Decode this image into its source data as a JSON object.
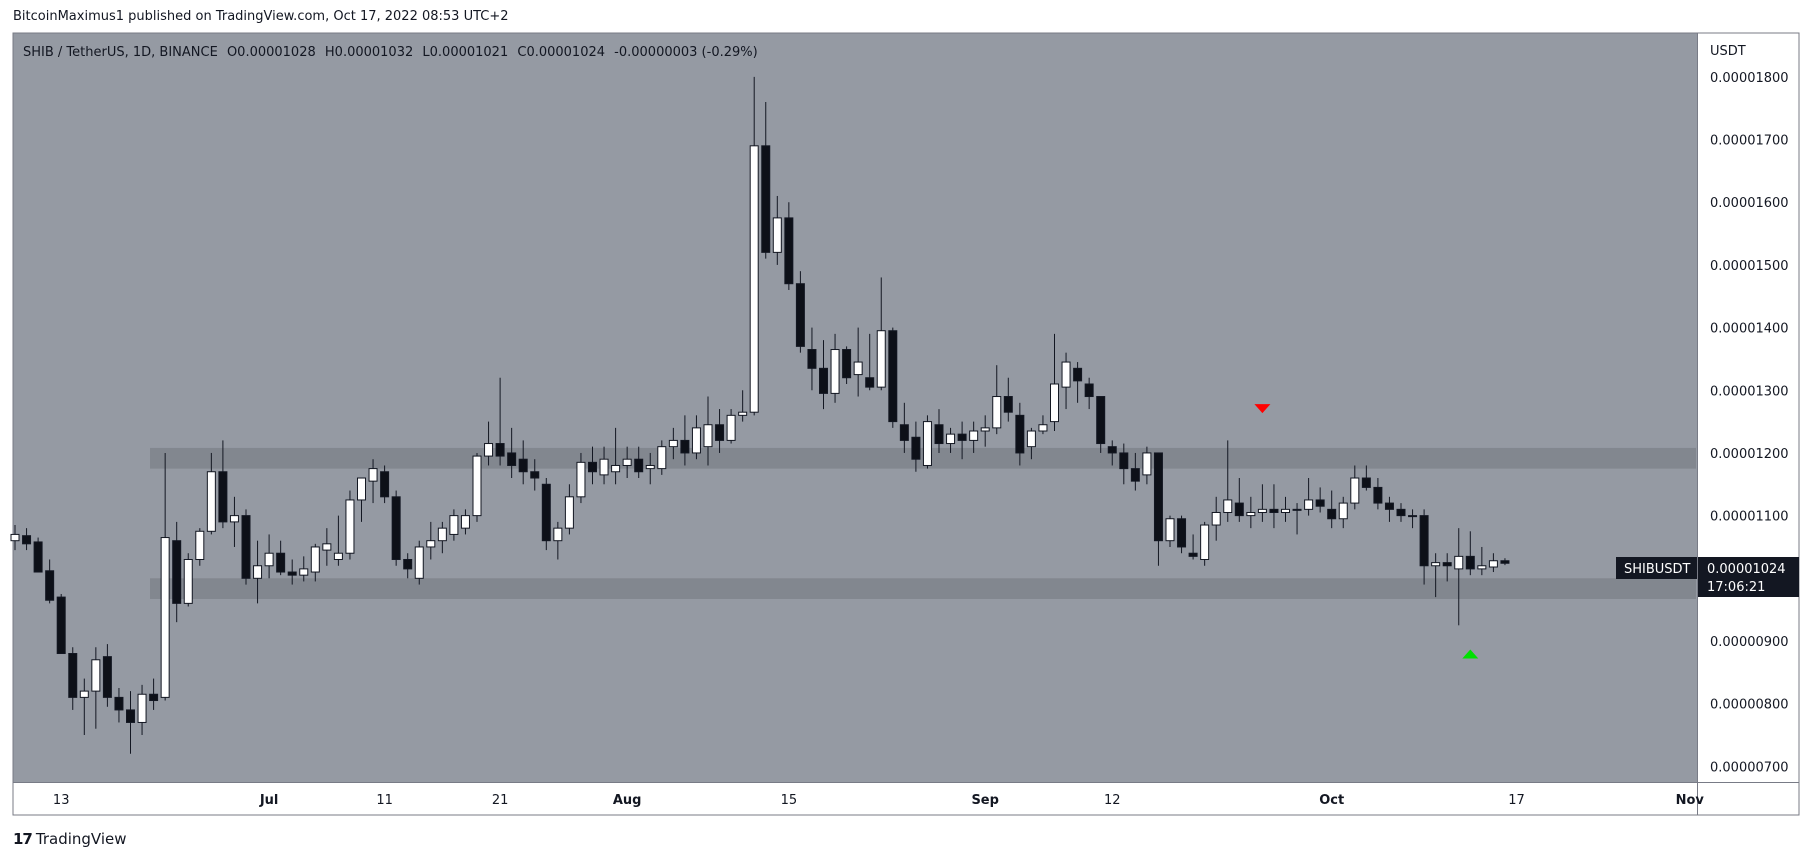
{
  "header": {
    "published": "BitcoinMaximus1 published on TradingView.com, Oct 17, 2022 08:53 UTC+2"
  },
  "legend": {
    "symbol": "SHIB / TetherUS, 1D, BINANCE",
    "o_label": "O",
    "o_value": "0.00001028",
    "h_label": "H",
    "h_value": "0.00001032",
    "l_label": "L",
    "l_value": "0.00001021",
    "c_label": "C",
    "c_value": "0.00001024",
    "change": "-0.00000003 (-0.29%)"
  },
  "price_axis": {
    "unit": "USDT",
    "ticks": [
      "0.00001800",
      "0.00001700",
      "0.00001600",
      "0.00001500",
      "0.00001400",
      "0.00001300",
      "0.00001200",
      "0.00001100",
      "0.00000900",
      "0.00000800",
      "0.00000700"
    ]
  },
  "last_price": {
    "symbol": "SHIBUSDT",
    "price": "0.00001024",
    "countdown": "17:06:21"
  },
  "time_axis": {
    "labels": [
      "13",
      "Jul",
      "11",
      "21",
      "Aug",
      "15",
      "Sep",
      "12",
      "Oct",
      "17",
      "Nov"
    ],
    "bold": [
      "Jul",
      "Aug",
      "Sep",
      "Oct",
      "Nov"
    ]
  },
  "footer": {
    "brand": "TradingView"
  },
  "colors": {
    "plot_bg": "#959aa3",
    "zone": "#7c8088",
    "up_fill": "#ffffff",
    "down_fill": "#0d1018",
    "wick": "#131722",
    "marker_down": "#ff0000",
    "marker_up": "#00e000",
    "price_label_bg": "#131722"
  },
  "chart_data": {
    "type": "candlestick",
    "title": "SHIB / TetherUS, 1D, BINANCE",
    "ylabel": "USDT",
    "ylim": [
      6.75e-06,
      1.87e-05
    ],
    "x_dates": {
      "first_candle": "2022-06-09",
      "labels": [
        {
          "text": "13",
          "date": "2022-06-13"
        },
        {
          "text": "Jul",
          "date": "2022-07-01"
        },
        {
          "text": "11",
          "date": "2022-07-11"
        },
        {
          "text": "21",
          "date": "2022-07-21"
        },
        {
          "text": "Aug",
          "date": "2022-08-01"
        },
        {
          "text": "15",
          "date": "2022-08-15"
        },
        {
          "text": "Sep",
          "date": "2022-09-01"
        },
        {
          "text": "12",
          "date": "2022-09-12"
        },
        {
          "text": "Oct",
          "date": "2022-10-01"
        },
        {
          "text": "17",
          "date": "2022-10-17"
        },
        {
          "text": "Nov",
          "date": "2022-11-01"
        }
      ]
    },
    "zones": [
      {
        "low": 1.175e-05,
        "high": 1.208e-05
      },
      {
        "low": 9.67e-06,
        "high": 1e-05
      }
    ],
    "markers": [
      {
        "kind": "down",
        "date": "2022-09-25",
        "price": 1.27e-05
      },
      {
        "kind": "up",
        "date": "2022-10-13",
        "price": 8.8e-06
      }
    ],
    "candles": [
      [
        1.06e-05,
        1.085e-05,
        1.045e-05,
        1.07e-05
      ],
      [
        1.068e-05,
        1.08e-05,
        1.045e-05,
        1.055e-05
      ],
      [
        1.058e-05,
        1.065e-05,
        1.01e-05,
        1.01e-05
      ],
      [
        1.012e-05,
        1.03e-05,
        9.6e-06,
        9.65e-06
      ],
      [
        9.7e-06,
        9.75e-06,
        8.8e-06,
        8.8e-06
      ],
      [
        8.8e-06,
        8.9e-06,
        7.9e-06,
        8.1e-06
      ],
      [
        8.1e-06,
        8.4e-06,
        7.5e-06,
        8.2e-06
      ],
      [
        8.2e-06,
        8.9e-06,
        7.6e-06,
        8.7e-06
      ],
      [
        8.75e-06,
        8.95e-06,
        7.95e-06,
        8.1e-06
      ],
      [
        8.1e-06,
        8.25e-06,
        7.7e-06,
        7.9e-06
      ],
      [
        7.9e-06,
        8.2e-06,
        7.2e-06,
        7.7e-06
      ],
      [
        7.7e-06,
        8.3e-06,
        7.5e-06,
        8.15e-06
      ],
      [
        8.15e-06,
        8.4e-06,
        7.9e-06,
        8.05e-06
      ],
      [
        8.1e-06,
        1.2e-05,
        8.05e-06,
        1.065e-05
      ],
      [
        1.06e-05,
        1.09e-05,
        9.3e-06,
        9.6e-06
      ],
      [
        9.6e-06,
        1.04e-05,
        9.55e-06,
        1.03e-05
      ],
      [
        1.03e-05,
        1.08e-05,
        1.02e-05,
        1.075e-05
      ],
      [
        1.075e-05,
        1.2e-05,
        1.07e-05,
        1.17e-05
      ],
      [
        1.17e-05,
        1.22e-05,
        1.08e-05,
        1.09e-05
      ],
      [
        1.09e-05,
        1.13e-05,
        1.05e-05,
        1.1e-05
      ],
      [
        1.1e-05,
        1.11e-05,
        9.9e-06,
        1e-05
      ],
      [
        1e-05,
        1.06e-05,
        9.6e-06,
        1.02e-05
      ],
      [
        1.02e-05,
        1.07e-05,
        1e-05,
        1.04e-05
      ],
      [
        1.04e-05,
        1.06e-05,
        1.005e-05,
        1.01e-05
      ],
      [
        1.01e-05,
        1.03e-05,
        9.9e-06,
        1.005e-05
      ],
      [
        1.005e-05,
        1.035e-05,
        9.95e-06,
        1.015e-05
      ],
      [
        1.01e-05,
        1.055e-05,
        9.95e-06,
        1.05e-05
      ],
      [
        1.045e-05,
        1.08e-05,
        1.02e-05,
        1.055e-05
      ],
      [
        1.03e-05,
        1.1e-05,
        1.02e-05,
        1.04e-05
      ],
      [
        1.04e-05,
        1.14e-05,
        1.03e-05,
        1.125e-05
      ],
      [
        1.125e-05,
        1.16e-05,
        1.09e-05,
        1.16e-05
      ],
      [
        1.155e-05,
        1.19e-05,
        1.12e-05,
        1.175e-05
      ],
      [
        1.17e-05,
        1.18e-05,
        1.12e-05,
        1.13e-05
      ],
      [
        1.13e-05,
        1.14e-05,
        1.02e-05,
        1.03e-05
      ],
      [
        1.03e-05,
        1.04e-05,
        1e-05,
        1.015e-05
      ],
      [
        1e-05,
        1.06e-05,
        9.9e-06,
        1.05e-05
      ],
      [
        1.05e-05,
        1.09e-05,
        1.03e-05,
        1.06e-05
      ],
      [
        1.06e-05,
        1.09e-05,
        1.04e-05,
        1.08e-05
      ],
      [
        1.07e-05,
        1.11e-05,
        1.06e-05,
        1.1e-05
      ],
      [
        1.08e-05,
        1.11e-05,
        1.07e-05,
        1.1e-05
      ],
      [
        1.1e-05,
        1.2e-05,
        1.09e-05,
        1.195e-05
      ],
      [
        1.195e-05,
        1.25e-05,
        1.18e-05,
        1.215e-05
      ],
      [
        1.215e-05,
        1.32e-05,
        1.18e-05,
        1.195e-05
      ],
      [
        1.2e-05,
        1.24e-05,
        1.16e-05,
        1.18e-05
      ],
      [
        1.19e-05,
        1.22e-05,
        1.15e-05,
        1.17e-05
      ],
      [
        1.17e-05,
        1.19e-05,
        1.14e-05,
        1.16e-05
      ],
      [
        1.15e-05,
        1.16e-05,
        1.045e-05,
        1.06e-05
      ],
      [
        1.06e-05,
        1.09e-05,
        1.03e-05,
        1.08e-05
      ],
      [
        1.08e-05,
        1.15e-05,
        1.07e-05,
        1.13e-05
      ],
      [
        1.13e-05,
        1.2e-05,
        1.12e-05,
        1.185e-05
      ],
      [
        1.185e-05,
        1.21e-05,
        1.15e-05,
        1.17e-05
      ],
      [
        1.165e-05,
        1.21e-05,
        1.15e-05,
        1.19e-05
      ],
      [
        1.17e-05,
        1.24e-05,
        1.15e-05,
        1.18e-05
      ],
      [
        1.18e-05,
        1.21e-05,
        1.16e-05,
        1.19e-05
      ],
      [
        1.19e-05,
        1.21e-05,
        1.16e-05,
        1.17e-05
      ],
      [
        1.175e-05,
        1.2e-05,
        1.15e-05,
        1.18e-05
      ],
      [
        1.175e-05,
        1.22e-05,
        1.165e-05,
        1.21e-05
      ],
      [
        1.21e-05,
        1.24e-05,
        1.19e-05,
        1.22e-05
      ],
      [
        1.22e-05,
        1.26e-05,
        1.18e-05,
        1.2e-05
      ],
      [
        1.2e-05,
        1.26e-05,
        1.19e-05,
        1.24e-05
      ],
      [
        1.21e-05,
        1.29e-05,
        1.18e-05,
        1.245e-05
      ],
      [
        1.245e-05,
        1.27e-05,
        1.2e-05,
        1.22e-05
      ],
      [
        1.22e-05,
        1.27e-05,
        1.215e-05,
        1.26e-05
      ],
      [
        1.26e-05,
        1.3e-05,
        1.25e-05,
        1.265e-05
      ],
      [
        1.265e-05,
        1.8e-05,
        1.26e-05,
        1.69e-05
      ],
      [
        1.69e-05,
        1.76e-05,
        1.51e-05,
        1.52e-05
      ],
      [
        1.52e-05,
        1.61e-05,
        1.5e-05,
        1.575e-05
      ],
      [
        1.575e-05,
        1.6e-05,
        1.46e-05,
        1.47e-05
      ],
      [
        1.47e-05,
        1.49e-05,
        1.36e-05,
        1.37e-05
      ],
      [
        1.365e-05,
        1.4e-05,
        1.3e-05,
        1.335e-05
      ],
      [
        1.335e-05,
        1.38e-05,
        1.27e-05,
        1.295e-05
      ],
      [
        1.295e-05,
        1.39e-05,
        1.28e-05,
        1.365e-05
      ],
      [
        1.365e-05,
        1.37e-05,
        1.31e-05,
        1.32e-05
      ],
      [
        1.325e-05,
        1.4e-05,
        1.29e-05,
        1.345e-05
      ],
      [
        1.32e-05,
        1.39e-05,
        1.3e-05,
        1.305e-05
      ],
      [
        1.305e-05,
        1.48e-05,
        1.3e-05,
        1.395e-05
      ],
      [
        1.395e-05,
        1.4e-05,
        1.24e-05,
        1.25e-05
      ],
      [
        1.245e-05,
        1.28e-05,
        1.2e-05,
        1.22e-05
      ],
      [
        1.225e-05,
        1.25e-05,
        1.17e-05,
        1.19e-05
      ],
      [
        1.18e-05,
        1.26e-05,
        1.175e-05,
        1.25e-05
      ],
      [
        1.245e-05,
        1.27e-05,
        1.2e-05,
        1.215e-05
      ],
      [
        1.215e-05,
        1.24e-05,
        1.2e-05,
        1.23e-05
      ],
      [
        1.23e-05,
        1.25e-05,
        1.19e-05,
        1.22e-05
      ],
      [
        1.22e-05,
        1.25e-05,
        1.2e-05,
        1.235e-05
      ],
      [
        1.235e-05,
        1.26e-05,
        1.21e-05,
        1.24e-05
      ],
      [
        1.24e-05,
        1.34e-05,
        1.23e-05,
        1.29e-05
      ],
      [
        1.29e-05,
        1.32e-05,
        1.25e-05,
        1.265e-05
      ],
      [
        1.26e-05,
        1.28e-05,
        1.18e-05,
        1.2e-05
      ],
      [
        1.21e-05,
        1.24e-05,
        1.19e-05,
        1.235e-05
      ],
      [
        1.235e-05,
        1.26e-05,
        1.23e-05,
        1.245e-05
      ],
      [
        1.25e-05,
        1.39e-05,
        1.235e-05,
        1.31e-05
      ],
      [
        1.305e-05,
        1.36e-05,
        1.27e-05,
        1.345e-05
      ],
      [
        1.335e-05,
        1.345e-05,
        1.28e-05,
        1.315e-05
      ],
      [
        1.31e-05,
        1.32e-05,
        1.27e-05,
        1.29e-05
      ],
      [
        1.29e-05,
        1.29e-05,
        1.2e-05,
        1.215e-05
      ],
      [
        1.21e-05,
        1.22e-05,
        1.18e-05,
        1.2e-05
      ],
      [
        1.2e-05,
        1.215e-05,
        1.15e-05,
        1.175e-05
      ],
      [
        1.175e-05,
        1.2e-05,
        1.14e-05,
        1.155e-05
      ],
      [
        1.165e-05,
        1.21e-05,
        1.15e-05,
        1.2e-05
      ],
      [
        1.2e-05,
        1.2e-05,
        1.02e-05,
        1.06e-05
      ],
      [
        1.06e-05,
        1.1e-05,
        1.05e-05,
        1.095e-05
      ],
      [
        1.095e-05,
        1.1e-05,
        1.04e-05,
        1.05e-05
      ],
      [
        1.04e-05,
        1.07e-05,
        1.03e-05,
        1.035e-05
      ],
      [
        1.03e-05,
        1.09e-05,
        1.02e-05,
        1.085e-05
      ],
      [
        1.085e-05,
        1.13e-05,
        1.06e-05,
        1.105e-05
      ],
      [
        1.105e-05,
        1.22e-05,
        1.09e-05,
        1.125e-05
      ],
      [
        1.12e-05,
        1.16e-05,
        1.09e-05,
        1.1e-05
      ],
      [
        1.1e-05,
        1.13e-05,
        1.08e-05,
        1.105e-05
      ],
      [
        1.105e-05,
        1.15e-05,
        1.09e-05,
        1.11e-05
      ],
      [
        1.11e-05,
        1.15e-05,
        1.08e-05,
        1.105e-05
      ],
      [
        1.105e-05,
        1.13e-05,
        1.09e-05,
        1.11e-05
      ],
      [
        1.11e-05,
        1.12e-05,
        1.07e-05,
        1.11e-05
      ],
      [
        1.11e-05,
        1.16e-05,
        1.1e-05,
        1.125e-05
      ],
      [
        1.125e-05,
        1.145e-05,
        1.105e-05,
        1.115e-05
      ],
      [
        1.11e-05,
        1.14e-05,
        1.08e-05,
        1.095e-05
      ],
      [
        1.095e-05,
        1.13e-05,
        1.08e-05,
        1.12e-05
      ],
      [
        1.12e-05,
        1.18e-05,
        1.11e-05,
        1.16e-05
      ],
      [
        1.16e-05,
        1.18e-05,
        1.14e-05,
        1.145e-05
      ],
      [
        1.145e-05,
        1.16e-05,
        1.11e-05,
        1.12e-05
      ],
      [
        1.12e-05,
        1.13e-05,
        1.09e-05,
        1.11e-05
      ],
      [
        1.11e-05,
        1.12e-05,
        1.09e-05,
        1.1e-05
      ],
      [
        1.1e-05,
        1.11e-05,
        1.08e-05,
        1.1e-05
      ],
      [
        1.1e-05,
        1.11e-05,
        9.9e-06,
        1.02e-05
      ],
      [
        1.02e-05,
        1.04e-05,
        9.7e-06,
        1.025e-05
      ],
      [
        1.025e-05,
        1.04e-05,
        9.95e-06,
        1.02e-05
      ],
      [
        1.015e-05,
        1.08e-05,
        9.25e-06,
        1.035e-05
      ],
      [
        1.035e-05,
        1.075e-05,
        1.005e-05,
        1.015e-05
      ],
      [
        1.015e-05,
        1.05e-05,
        1.005e-05,
        1.02e-05
      ],
      [
        1.018e-05,
        1.04e-05,
        1.01e-05,
        1.028e-05
      ],
      [
        1.028e-05,
        1.032e-05,
        1.021e-05,
        1.024e-05
      ]
    ]
  }
}
